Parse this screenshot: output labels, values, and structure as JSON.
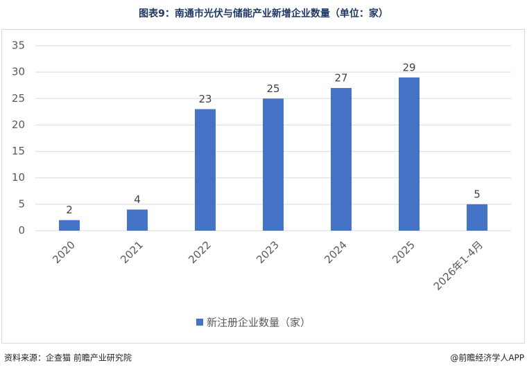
{
  "chart_data": {
    "type": "bar",
    "title": "图表9：南通市光伏与储能产业新增企业数量（单位：家）",
    "categories": [
      "2020",
      "2021",
      "2022",
      "2023",
      "2024",
      "2025",
      "2026年1-4月"
    ],
    "series": [
      {
        "name": "新注册企业数量（家）",
        "color": "#4472c4",
        "values": [
          2,
          4,
          23,
          25,
          27,
          29,
          5
        ]
      }
    ],
    "ylim": [
      0,
      35
    ],
    "yticks": [
      0,
      5,
      10,
      15,
      20,
      25,
      30,
      35
    ],
    "grid": true,
    "legend": "bottom",
    "source": "资料来源：企查猫 前瞻产业研究院",
    "credit": "@前瞻经济学人APP"
  }
}
